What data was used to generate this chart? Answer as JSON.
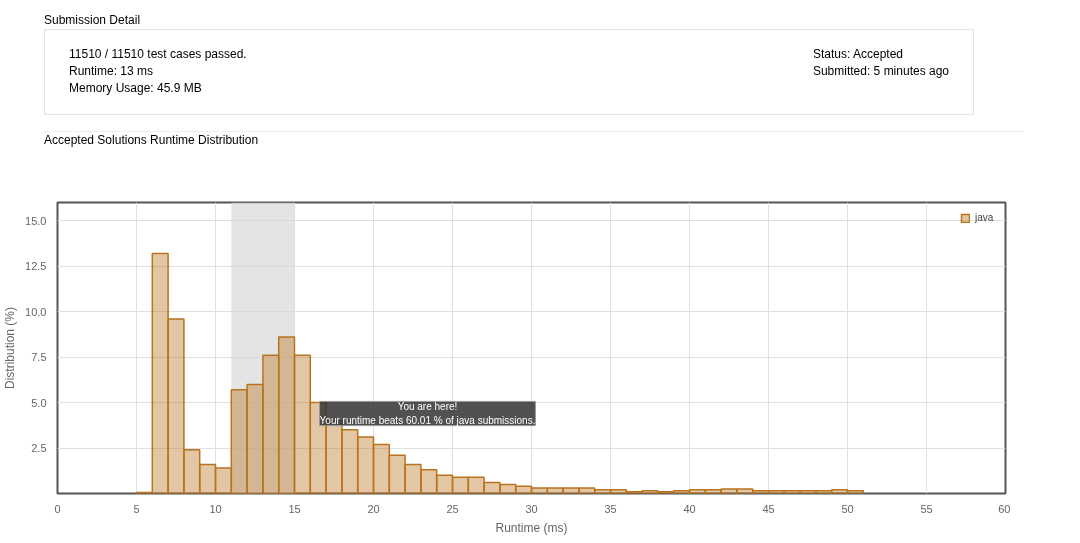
{
  "chart_data": {
    "type": "histogram",
    "title": "Accepted Solutions Runtime Distribution",
    "xlabel": "Runtime (ms)",
    "ylabel": "Distribution (%)",
    "bins": [
      5,
      6,
      7,
      8,
      9,
      10,
      11,
      12,
      13,
      14,
      15,
      16,
      17,
      18,
      19,
      20,
      21,
      22,
      23,
      24,
      25,
      26,
      27,
      28,
      29,
      30,
      31,
      32,
      33,
      34,
      35,
      36,
      37,
      38,
      39,
      40,
      41,
      42,
      43,
      44,
      45,
      46,
      47,
      48,
      49,
      50,
      51
    ],
    "series": [
      {
        "name": "java",
        "color": "#b8731c",
        "values": [
          0.05,
          13.2,
          9.6,
          2.4,
          1.6,
          1.4,
          5.7,
          6.0,
          7.6,
          8.6,
          7.6,
          5.0,
          4.0,
          3.5,
          3.1,
          2.7,
          2.1,
          1.6,
          1.3,
          1.0,
          0.9,
          0.9,
          0.6,
          0.5,
          0.4,
          0.3,
          0.3,
          0.3,
          0.3,
          0.2,
          0.2,
          0.1,
          0.15,
          0.1,
          0.15,
          0.2,
          0.2,
          0.25,
          0.25,
          0.15,
          0.15,
          0.15,
          0.15,
          0.15,
          0.2,
          0.15
        ]
      }
    ],
    "xlim": [
      0,
      60
    ],
    "xticks": [
      0,
      5,
      10,
      15,
      20,
      25,
      30,
      35,
      40,
      45,
      50,
      55,
      60
    ],
    "ylim": [
      0,
      16
    ],
    "yticks": [
      {
        "value": 2.5,
        "label": "2.5"
      },
      {
        "value": 5,
        "label": "5.0"
      },
      {
        "value": 7.5,
        "label": "7.5"
      },
      {
        "value": 10,
        "label": "10.0"
      },
      {
        "value": 12.5,
        "label": "12.5"
      },
      {
        "value": 15,
        "label": "15.0"
      }
    ],
    "bands": [
      {
        "axis": "x",
        "from": 11,
        "to": 15,
        "color": "#d9d9d9"
      }
    ],
    "grid": true,
    "legend": "top right",
    "annotations": [
      "Submission Detail",
      "11510 / 11510 test cases passed.",
      "Runtime: 13 ms",
      "Memory Usage: 45.9 MB",
      "Status: Accepted",
      "Submitted: 5 minutes ago",
      "You are here!\nYour runtime beats 60.01 % of java submissions."
    ]
  }
}
